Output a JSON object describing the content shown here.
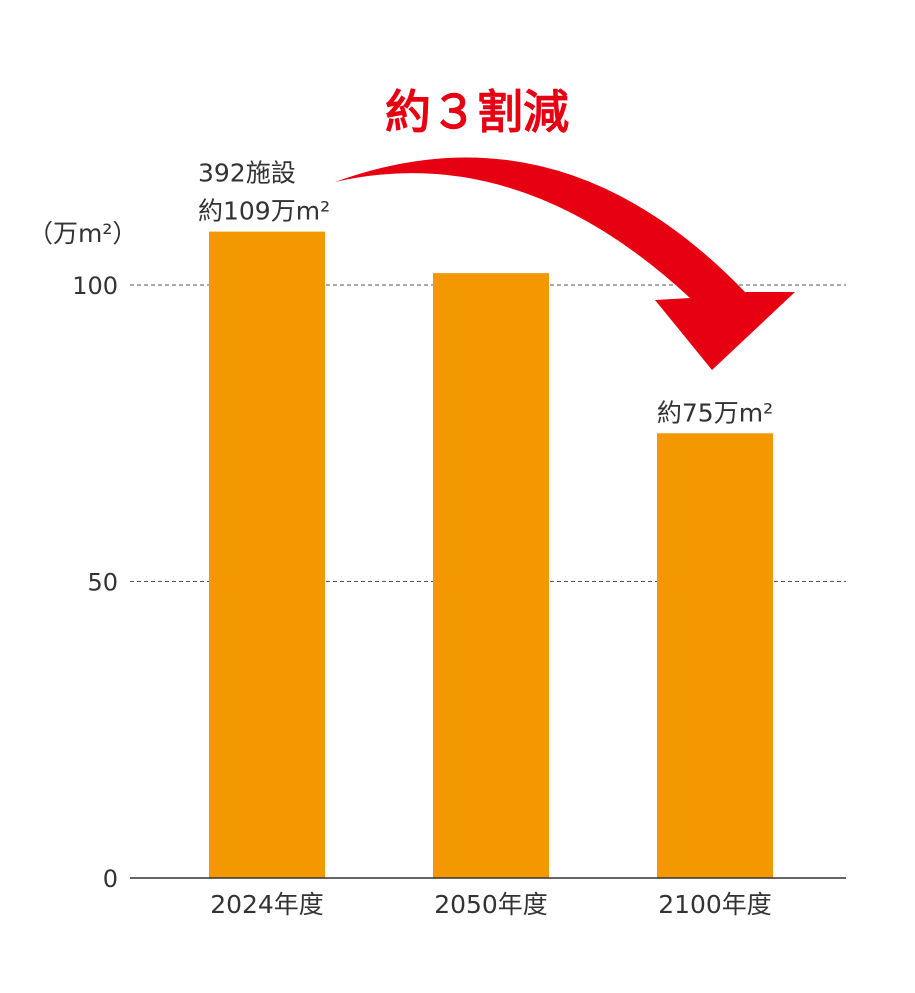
{
  "chart_data": {
    "type": "bar",
    "title": "約３割減",
    "ylabel": "（万m²）",
    "xlabel": "",
    "categories": [
      "2024年度",
      "2050年度",
      "2100年度"
    ],
    "values": [
      109,
      102,
      75
    ],
    "ylim": [
      0,
      110
    ],
    "yticks": [
      0,
      50,
      100
    ],
    "ytick_labels": [
      "0",
      "50",
      "100"
    ],
    "grid": "dashed horizontal at 50 and 100",
    "annotations": [
      {
        "category": "2024年度",
        "lines": [
          "392施設",
          "約109万m²"
        ]
      },
      {
        "category": "2100年度",
        "lines": [
          "約75万m²"
        ]
      }
    ],
    "colors": {
      "bar": "#f39800",
      "arrow": "#e60012",
      "grid": "#555555"
    }
  }
}
